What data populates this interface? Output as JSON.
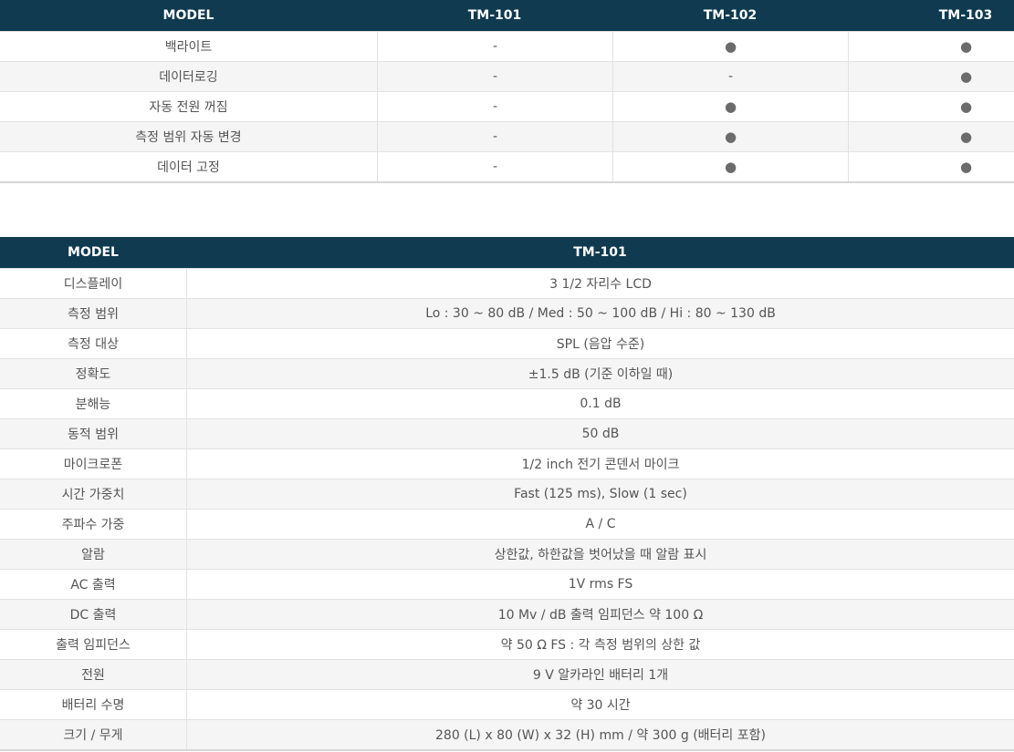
{
  "table1": {
    "header": [
      "MODEL",
      "TM-101",
      "TM-102",
      "TM-103"
    ],
    "rows": [
      [
        "백라이트",
        "-",
        "●",
        "●"
      ],
      [
        "데이터로깅",
        "-",
        "-",
        "●"
      ],
      [
        "자동 전원 꺼짐",
        "-",
        "●",
        "●"
      ],
      [
        "측정 범위 자동 변경",
        "-",
        "●",
        "●"
      ],
      [
        "데이터 고정",
        "-",
        "●",
        "●"
      ]
    ]
  },
  "table2": {
    "header": [
      "MODEL",
      "TM-101"
    ],
    "rows": [
      [
        "디스플레이",
        "3 1/2 자리수 LCD"
      ],
      [
        "측정 범위",
        "Lo : 30 ~ 80 dB / Med : 50 ~ 100 dB / Hi : 80 ~ 130 dB"
      ],
      [
        "측정 대상",
        "SPL (음압 수준)"
      ],
      [
        "정확도",
        "±1.5 dB (기준 이하일 때)"
      ],
      [
        "분해능",
        "0.1 dB"
      ],
      [
        "동적 범위",
        "50 dB"
      ],
      [
        "마이크로폰",
        "1/2 inch 전기 콘덴서 마이크"
      ],
      [
        "시간 가중치",
        "Fast (125 ms), Slow (1 sec)"
      ],
      [
        "주파수 가중",
        "A / C"
      ],
      [
        "알람",
        "상한값, 하한값을 벗어났을 때 알람 표시"
      ],
      [
        "AC 출력",
        "1V rms FS"
      ],
      [
        "DC 출력",
        "10 Mv / dB 출력 임피던스 약 100 Ω"
      ],
      [
        "출력 임피던스",
        "약 50 Ω FS : 각 측정 범위의 상한 값"
      ],
      [
        "전원",
        "9 V 알카라인 배터리 1개"
      ],
      [
        "배터리 수명",
        "약 30 시간"
      ],
      [
        "크기 / 무게",
        "280 (L) x 80 (W) x 32 (H) mm / 약 300 g (배터리 포함)"
      ]
    ]
  }
}
